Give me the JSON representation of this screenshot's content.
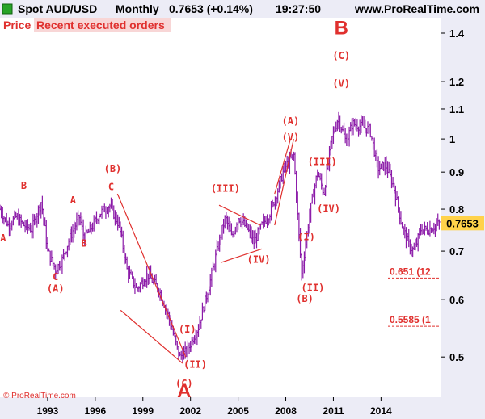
{
  "header": {
    "symbol": "Spot AUD/USD",
    "period": "Monthly",
    "price": "0.7653 (+0.14%)",
    "time": "19:27:50",
    "site": "www.ProRealTime.com"
  },
  "tabs": [
    {
      "label": "Price"
    },
    {
      "label": "Recent executed orders"
    }
  ],
  "last_price_label": "0.7653",
  "copyright": "© ProRealTime.com",
  "colors": {
    "bars": "#8b1aa8",
    "annotations": "#e0302e",
    "price_badge": "#ffd24a",
    "axis_panel": "#ececf6"
  },
  "chart_data": {
    "type": "bar",
    "scale": "log",
    "ylim": [
      0.44,
      1.47
    ],
    "xlim": [
      1990.0,
      2017.8
    ],
    "y_ticks": [
      "0.5",
      "0.6",
      "0.7",
      "0.8",
      "0.9",
      "1",
      "1.1",
      "1.2",
      "1.4"
    ],
    "x_ticks": [
      "1993",
      "1996",
      "1999",
      "2002",
      "2005",
      "2008",
      "2011",
      "2014"
    ],
    "anchors": [
      [
        1990.0,
        0.8
      ],
      [
        1990.5,
        0.76
      ],
      [
        1991.0,
        0.78
      ],
      [
        1991.5,
        0.76
      ],
      [
        1992.0,
        0.75
      ],
      [
        1992.6,
        0.82
      ],
      [
        1993.0,
        0.7
      ],
      [
        1993.5,
        0.66
      ],
      [
        1993.9,
        0.68
      ],
      [
        1994.5,
        0.74
      ],
      [
        1995.0,
        0.78
      ],
      [
        1995.3,
        0.73
      ],
      [
        1995.7,
        0.75
      ],
      [
        1996.3,
        0.79
      ],
      [
        1996.9,
        0.81
      ],
      [
        1997.5,
        0.76
      ],
      [
        1998.0,
        0.66
      ],
      [
        1998.6,
        0.62
      ],
      [
        1999.3,
        0.65
      ],
      [
        2000.0,
        0.62
      ],
      [
        2000.6,
        0.57
      ],
      [
        2001.3,
        0.5
      ],
      [
        2001.8,
        0.51
      ],
      [
        2002.5,
        0.55
      ],
      [
        2003.2,
        0.63
      ],
      [
        2003.8,
        0.72
      ],
      [
        2004.2,
        0.78
      ],
      [
        2004.6,
        0.73
      ],
      [
        2005.0,
        0.78
      ],
      [
        2005.6,
        0.75
      ],
      [
        2006.0,
        0.72
      ],
      [
        2006.5,
        0.76
      ],
      [
        2007.0,
        0.79
      ],
      [
        2007.5,
        0.85
      ],
      [
        2007.9,
        0.91
      ],
      [
        2008.5,
        0.95
      ],
      [
        2008.8,
        0.75
      ],
      [
        2009.0,
        0.65
      ],
      [
        2009.6,
        0.81
      ],
      [
        2010.0,
        0.9
      ],
      [
        2010.4,
        0.84
      ],
      [
        2010.9,
        1.0
      ],
      [
        2011.3,
        1.07
      ],
      [
        2011.8,
        0.99
      ],
      [
        2012.2,
        1.05
      ],
      [
        2012.8,
        1.04
      ],
      [
        2013.3,
        1.03
      ],
      [
        2013.8,
        0.91
      ],
      [
        2014.3,
        0.92
      ],
      [
        2014.8,
        0.86
      ],
      [
        2015.3,
        0.76
      ],
      [
        2015.8,
        0.71
      ],
      [
        2016.1,
        0.7
      ],
      [
        2016.5,
        0.75
      ],
      [
        2017.0,
        0.75
      ],
      [
        2017.7,
        0.7653
      ]
    ],
    "trend_lines": [
      [
        [
          1997.4,
          0.84
        ],
        [
          2001.7,
          0.5
        ]
      ],
      [
        [
          1997.6,
          0.58
        ],
        [
          2001.5,
          0.49
        ]
      ],
      [
        [
          2003.9,
          0.675
        ],
        [
          2006.5,
          0.705
        ]
      ],
      [
        [
          2003.8,
          0.81
        ],
        [
          2006.4,
          0.76
        ]
      ],
      [
        [
          2007.3,
          0.84
        ],
        [
          2008.3,
          1.0
        ]
      ],
      [
        [
          2007.3,
          0.76
        ],
        [
          2008.5,
          1.0
        ]
      ]
    ],
    "annotations": [
      {
        "text": "A",
        "x": 1990.2,
        "y": 0.722,
        "size": "small"
      },
      {
        "text": "B",
        "x": 1991.5,
        "y": 0.853,
        "size": "small"
      },
      {
        "text": "C",
        "x": 1993.5,
        "y": 0.638,
        "size": "small"
      },
      {
        "text": "(A)",
        "x": 1993.5,
        "y": 0.615,
        "size": "small"
      },
      {
        "text": "A",
        "x": 1994.6,
        "y": 0.815,
        "size": "small"
      },
      {
        "text": "B",
        "x": 1995.3,
        "y": 0.71,
        "size": "small"
      },
      {
        "text": "(B)",
        "x": 1997.1,
        "y": 0.9,
        "size": "small"
      },
      {
        "text": "C",
        "x": 1997.0,
        "y": 0.85,
        "size": "small"
      },
      {
        "text": "(III)",
        "x": 2004.2,
        "y": 0.845,
        "size": "small"
      },
      {
        "text": "(IV)",
        "x": 2006.3,
        "y": 0.675,
        "size": "small"
      },
      {
        "text": "(I)",
        "x": 2001.8,
        "y": 0.54,
        "size": "small"
      },
      {
        "text": "(II)",
        "x": 2002.3,
        "y": 0.483,
        "size": "small"
      },
      {
        "text": "(C)",
        "x": 2001.6,
        "y": 0.455,
        "size": "small"
      },
      {
        "text": "A",
        "x": 2001.6,
        "y": 0.44,
        "size": "big"
      },
      {
        "text": "(A)",
        "x": 2008.3,
        "y": 1.048,
        "size": "small"
      },
      {
        "text": "(V)",
        "x": 2008.3,
        "y": 0.995,
        "size": "small"
      },
      {
        "text": "(I)",
        "x": 2009.3,
        "y": 0.725,
        "size": "small"
      },
      {
        "text": "(II)",
        "x": 2009.7,
        "y": 0.617,
        "size": "small"
      },
      {
        "text": "(B)",
        "x": 2009.2,
        "y": 0.596,
        "size": "small"
      },
      {
        "text": "(III)",
        "x": 2010.3,
        "y": 0.92,
        "size": "small"
      },
      {
        "text": "(IV)",
        "x": 2010.7,
        "y": 0.793,
        "size": "small"
      },
      {
        "text": "(C)",
        "x": 2011.5,
        "y": 1.29,
        "size": "small"
      },
      {
        "text": "(V)",
        "x": 2011.5,
        "y": 1.18,
        "size": "small"
      },
      {
        "text": "B",
        "x": 2011.5,
        "y": 1.395,
        "size": "big"
      }
    ],
    "fib_levels": [
      {
        "label": "0.651 (12",
        "value": 0.651
      },
      {
        "label": "0.5585 (1",
        "value": 0.5585
      }
    ]
  }
}
